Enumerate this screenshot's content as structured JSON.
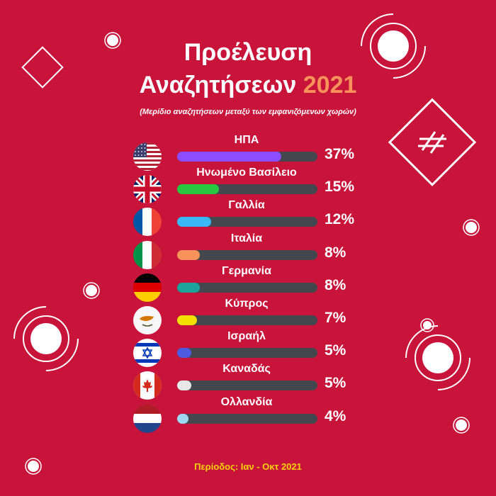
{
  "title": {
    "line1": "Προέλευση",
    "line2": "Αναζητήσεων",
    "year": "2021"
  },
  "subtitle": "(Μερίδιο αναζητήσεων μεταξύ των εμφανιζόμενων χωρών)",
  "footer": "Περίοδος: Ιαν - Οκτ 2021",
  "rows": [
    {
      "country": "ΗΠΑ",
      "pct_label": "37%",
      "color": "#8b4dff",
      "flag": "us-flag-icon"
    },
    {
      "country": "Ηνωμένο Βασίλειο",
      "pct_label": "15%",
      "color": "#27c840",
      "flag": "uk-flag-icon"
    },
    {
      "country": "Γαλλία",
      "pct_label": "12%",
      "color": "#3ab7f5",
      "flag": "france-flag-icon"
    },
    {
      "country": "Ιταλία",
      "pct_label": "8%",
      "color": "#f7925a",
      "flag": "italy-flag-icon"
    },
    {
      "country": "Γερμανία",
      "pct_label": "8%",
      "color": "#1ba39c",
      "flag": "germany-flag-icon"
    },
    {
      "country": "Κύπρος",
      "pct_label": "7%",
      "color": "#f3e000",
      "flag": "cyprus-flag-icon"
    },
    {
      "country": "Ισραήλ",
      "pct_label": "5%",
      "color": "#4c5be0",
      "flag": "israel-flag-icon"
    },
    {
      "country": "Καναδάς",
      "pct_label": "5%",
      "color": "#e8e8e8",
      "flag": "canada-flag-icon"
    },
    {
      "country": "Ολλανδία",
      "pct_label": "4%",
      "color": "#9fd6f2",
      "flag": "netherlands-flag-icon"
    }
  ],
  "chart_data": {
    "type": "bar",
    "title": "Προέλευση Αναζητήσεων 2021",
    "subtitle": "(Μερίδιο αναζητήσεων μεταξύ των εμφανιζόμενων χωρών)",
    "categories": [
      "ΗΠΑ",
      "Ηνωμένο Βασίλειο",
      "Γαλλία",
      "Ιταλία",
      "Γερμανία",
      "Κύπρος",
      "Ισραήλ",
      "Καναδάς",
      "Ολλανδία"
    ],
    "values": [
      37,
      15,
      12,
      8,
      8,
      7,
      5,
      5,
      4
    ],
    "unit": "%",
    "orientation": "horizontal",
    "ylim": [
      0,
      100
    ]
  }
}
